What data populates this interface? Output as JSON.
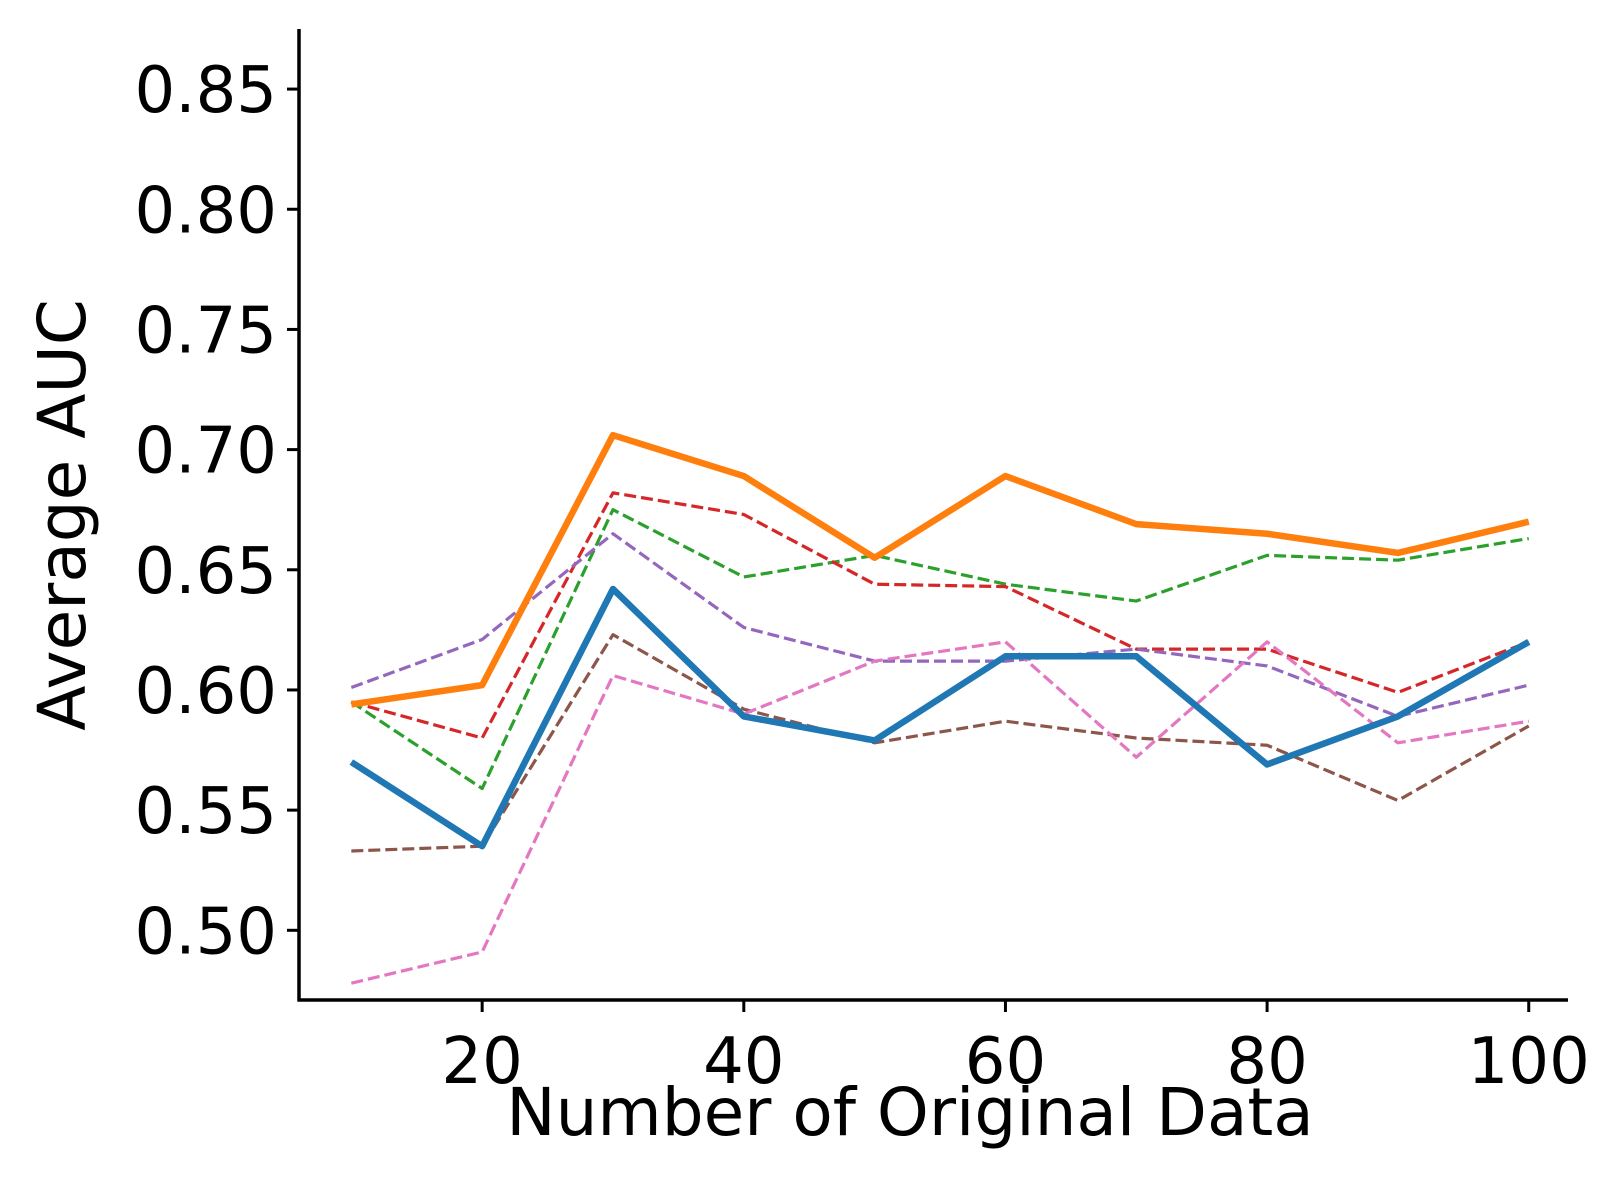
{
  "chart_data": {
    "type": "line",
    "title": "",
    "xlabel": "Number of Original Data",
    "ylabel": "Average AUC",
    "xlim": [
      6,
      103
    ],
    "ylim": [
      0.471,
      0.875
    ],
    "xticks": [
      20,
      40,
      60,
      80,
      100
    ],
    "xtick_labels": [
      "20",
      "40",
      "60",
      "80",
      "100"
    ],
    "yticks": [
      0.5,
      0.55,
      0.6,
      0.65,
      0.7,
      0.75,
      0.8,
      0.85
    ],
    "ytick_labels": [
      "0.50",
      "0.55",
      "0.60",
      "0.65",
      "0.70",
      "0.75",
      "0.80",
      "0.85"
    ],
    "grid": false,
    "x": [
      10,
      20,
      30,
      40,
      50,
      60,
      70,
      80,
      90,
      100
    ],
    "series": [
      {
        "color": "#1f77b4",
        "style": "solid",
        "values": [
          0.57,
          0.535,
          0.642,
          0.589,
          0.579,
          0.614,
          0.614,
          0.569,
          0.589,
          0.62
        ]
      },
      {
        "color": "#ff7f0e",
        "style": "solid",
        "values": [
          0.594,
          0.602,
          0.706,
          0.689,
          0.655,
          0.689,
          0.669,
          0.665,
          0.657,
          0.67
        ]
      },
      {
        "color": "#2ca02c",
        "style": "dashed",
        "values": [
          0.595,
          0.559,
          0.675,
          0.647,
          0.656,
          0.644,
          0.637,
          0.656,
          0.654,
          0.663
        ]
      },
      {
        "color": "#d62728",
        "style": "dashed",
        "values": [
          0.595,
          0.58,
          0.682,
          0.673,
          0.644,
          0.643,
          0.617,
          0.617,
          0.599,
          0.62
        ]
      },
      {
        "color": "#9467bd",
        "style": "dashed",
        "values": [
          0.601,
          0.621,
          0.665,
          0.626,
          0.612,
          0.612,
          0.617,
          0.61,
          0.589,
          0.602
        ]
      },
      {
        "color": "#8c564b",
        "style": "dashed",
        "values": [
          0.533,
          0.535,
          0.623,
          0.592,
          0.578,
          0.587,
          0.58,
          0.577,
          0.554,
          0.585
        ]
      },
      {
        "color": "#e377c2",
        "style": "dashed",
        "values": [
          0.478,
          0.491,
          0.606,
          0.59,
          0.612,
          0.62,
          0.572,
          0.62,
          0.578,
          0.587
        ]
      }
    ]
  }
}
